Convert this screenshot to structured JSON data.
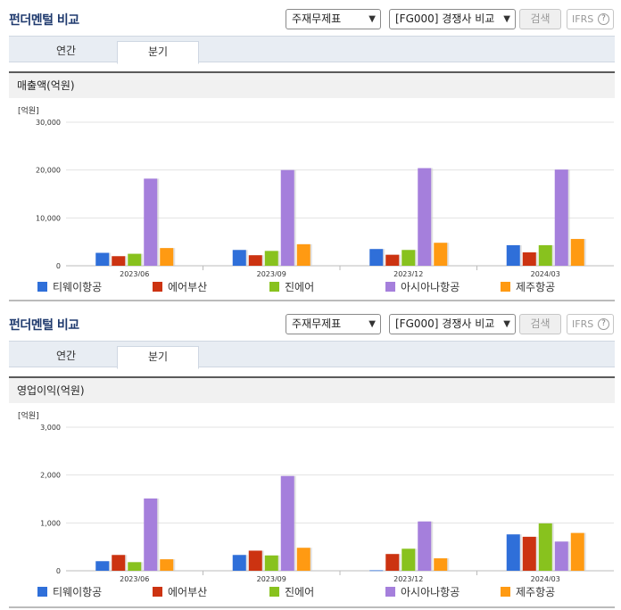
{
  "panels": [
    {
      "title": "펀더멘털 비교",
      "report_select": "주재무제표",
      "compare_select": "[FG000] 경쟁사 비교",
      "search_label": "검색",
      "ifrs_label": "IFRS",
      "help_glyph": "?",
      "tabs": [
        "연간",
        "분기"
      ],
      "active_tab": "분기",
      "metric_label": "매출액(억원)"
    },
    {
      "title": "펀더멘털 비교",
      "report_select": "주재무제표",
      "compare_select": "[FG000] 경쟁사 비교",
      "search_label": "검색",
      "ifrs_label": "IFRS",
      "help_glyph": "?",
      "tabs": [
        "연간",
        "분기"
      ],
      "active_tab": "분기",
      "metric_label": "영업이익(억원)"
    }
  ],
  "colors": {
    "티웨이항공": "#2f6fd9",
    "에어부산": "#cc3311",
    "진에어": "#88c21e",
    "아시아나항공": "#a57fdc",
    "제주항공": "#ff9a12"
  },
  "chart_data": [
    {
      "type": "bar",
      "unit_label": "[억원]",
      "categories": [
        "2023/06",
        "2023/09",
        "2023/12",
        "2024/03"
      ],
      "ylim": [
        0,
        30000
      ],
      "yticks": [
        "0",
        "10,000",
        "20,000",
        "30,000"
      ],
      "ytick_values": [
        0,
        10000,
        20000,
        30000
      ],
      "grid": true,
      "legend_position": "bottom",
      "series": [
        {
          "name": "티웨이항공",
          "values": [
            2700,
            3300,
            3500,
            4300
          ]
        },
        {
          "name": "에어부산",
          "values": [
            2000,
            2200,
            2300,
            2800
          ]
        },
        {
          "name": "진에어",
          "values": [
            2500,
            3100,
            3300,
            4300
          ]
        },
        {
          "name": "아시아나항공",
          "values": [
            18200,
            20000,
            20400,
            20100
          ]
        },
        {
          "name": "제주항공",
          "values": [
            3700,
            4500,
            4800,
            5600
          ]
        }
      ]
    },
    {
      "type": "bar",
      "unit_label": "[억원]",
      "categories": [
        "2023/06",
        "2023/09",
        "2023/12",
        "2024/03"
      ],
      "ylim": [
        0,
        3000
      ],
      "yticks": [
        "0",
        "1,000",
        "2,000",
        "3,000"
      ],
      "ytick_values": [
        0,
        1000,
        2000,
        3000
      ],
      "grid": true,
      "legend_position": "bottom",
      "series": [
        {
          "name": "티웨이항공",
          "values": [
            200,
            330,
            10,
            760
          ]
        },
        {
          "name": "에어부산",
          "values": [
            330,
            420,
            350,
            710
          ]
        },
        {
          "name": "진에어",
          "values": [
            180,
            320,
            460,
            990
          ]
        },
        {
          "name": "아시아나항공",
          "values": [
            1510,
            1980,
            1030,
            610
          ]
        },
        {
          "name": "제주항공",
          "values": [
            240,
            480,
            260,
            790
          ]
        }
      ]
    }
  ]
}
